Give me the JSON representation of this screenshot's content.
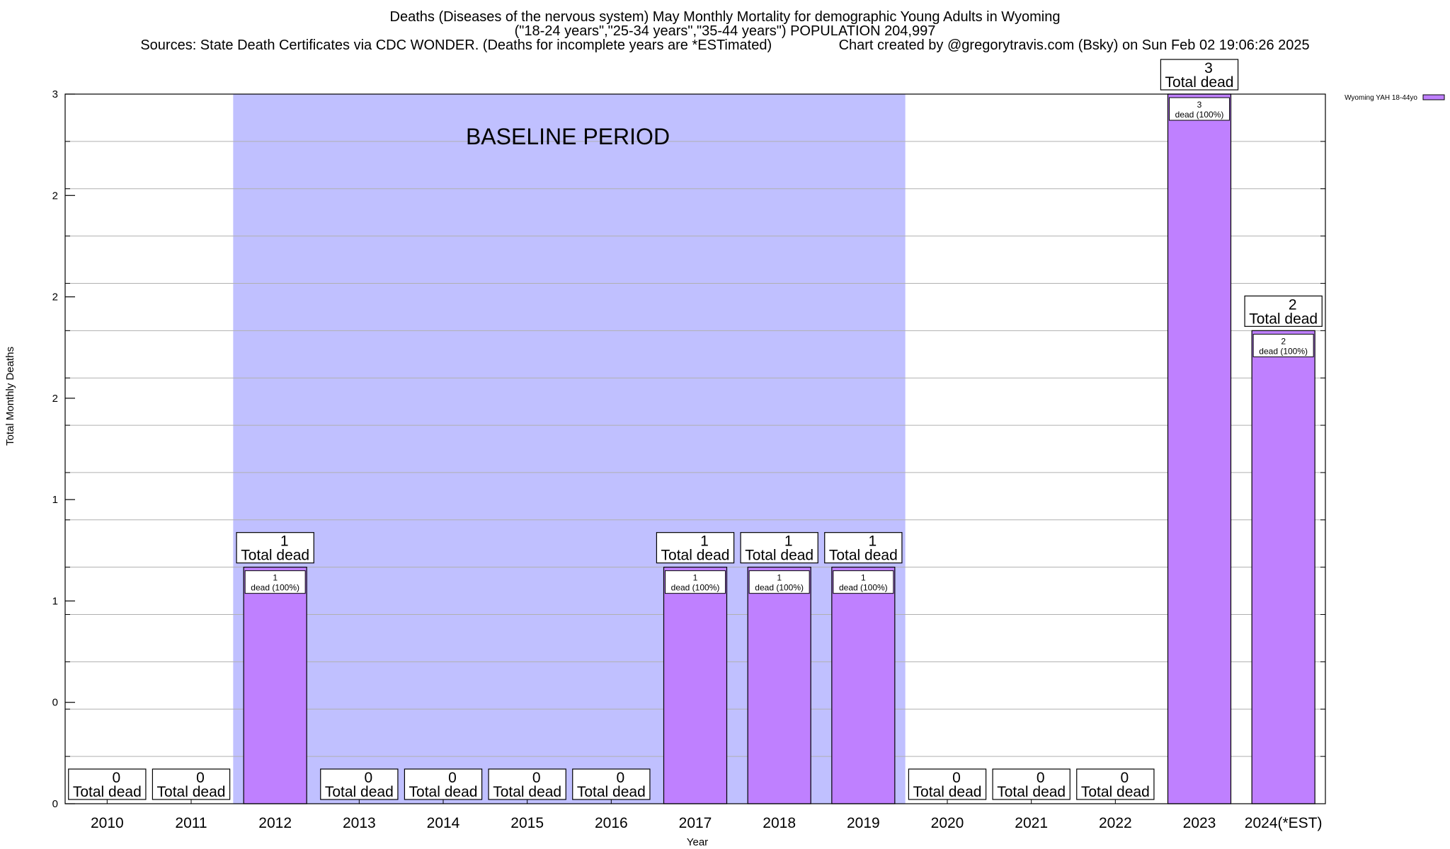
{
  "title": {
    "line1": "Deaths (Diseases of the nervous system) May Monthly Mortality for demographic Young Adults in Wyoming",
    "line2": "(\"18-24 years\",\"25-34 years\",\"35-44 years\") POPULATION 204,997",
    "line3": "Sources: State Death Certificates via CDC WONDER. (Deaths for incomplete years are *ESTimated)                 Chart created by @gregorytravis.com (Bsky) on Sun Feb 02 19:06:26 2025"
  },
  "chart_data": {
    "type": "bar",
    "xlabel": "Year",
    "ylabel": "Total Monthly Deaths",
    "ylim": [
      0,
      3
    ],
    "ytick_labels": [
      "0",
      "0",
      "1",
      "1",
      "2",
      "2",
      "2",
      "3"
    ],
    "categories": [
      "2010",
      "2011",
      "2012",
      "2013",
      "2014",
      "2015",
      "2016",
      "2017",
      "2018",
      "2019",
      "2020",
      "2021",
      "2022",
      "2023",
      "2024(*EST)"
    ],
    "series": [
      {
        "name": "Wyoming YAH 18-44yo",
        "color": "#bf80ff",
        "values": [
          0,
          0,
          1,
          0,
          0,
          0,
          0,
          1,
          1,
          1,
          0,
          0,
          0,
          3,
          2
        ]
      }
    ],
    "total_label_suffix": "Total dead",
    "inner_label_suffix": "dead (100%)",
    "baseline": {
      "label": "BASELINE PERIOD",
      "from": "2012",
      "to": "2019",
      "color": "#c0c0ff"
    },
    "grid": true,
    "legend": "top-right"
  }
}
